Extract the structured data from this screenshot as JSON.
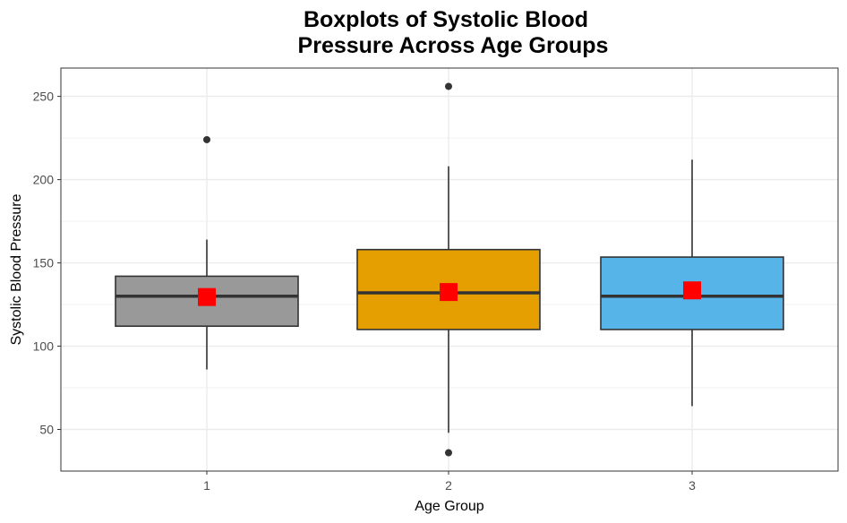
{
  "chart_data": {
    "type": "boxplot",
    "title_lines": [
      "Boxplots of Systolic Blood",
      "Pressure Across Age Groups"
    ],
    "xlabel": "Age Group",
    "ylabel": "Systolic Blood Pressure",
    "ylim": [
      25,
      267
    ],
    "yticks": [
      50,
      100,
      150,
      200,
      250
    ],
    "grid": true,
    "legend": "none",
    "groups": [
      {
        "category": "1",
        "color": "#999999",
        "whisker_low": 86,
        "q1": 112,
        "median": 130,
        "q3": 142,
        "whisker_high": 164,
        "mean": 129.5,
        "outliers": [
          224
        ]
      },
      {
        "category": "2",
        "color": "#E69F00",
        "whisker_low": 48,
        "q1": 110,
        "median": 132,
        "q3": 158,
        "whisker_high": 208,
        "mean": 132.5,
        "outliers": [
          256,
          36
        ]
      },
      {
        "category": "3",
        "color": "#56B4E9",
        "whisker_low": 64,
        "q1": 110,
        "median": 130,
        "q3": 153.5,
        "whisker_high": 212,
        "mean": 133.5,
        "outliers": []
      }
    ],
    "mean_marker_color": "#FF0000"
  }
}
